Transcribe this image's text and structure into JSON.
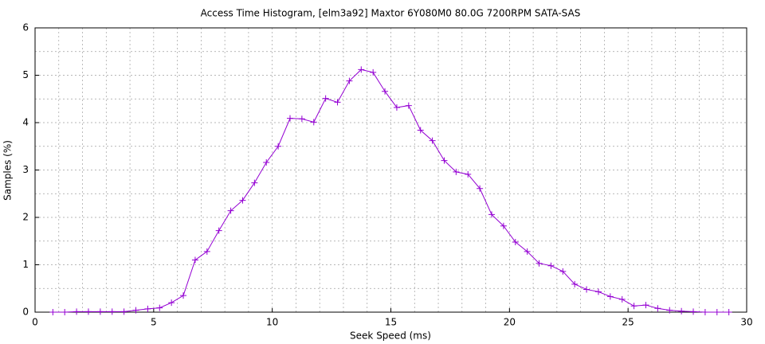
{
  "chart_data": {
    "type": "line",
    "title": "Access Time Histogram, [elm3a92] Maxtor 6Y080M0 80.0G 7200RPM SATA-SAS",
    "x_label": "Seek Speed (ms)",
    "y_label": "Samples (%)",
    "x": [
      0.75,
      1.25,
      1.75,
      2.25,
      2.75,
      3.25,
      3.75,
      4.25,
      4.75,
      5.25,
      5.75,
      6.25,
      6.75,
      7.25,
      7.75,
      8.25,
      8.75,
      9.25,
      9.75,
      10.25,
      10.75,
      11.25,
      11.75,
      12.25,
      12.75,
      13.25,
      13.75,
      14.25,
      14.75,
      15.25,
      15.75,
      16.25,
      16.75,
      17.25,
      17.75,
      18.25,
      18.75,
      19.25,
      19.75,
      20.25,
      20.75,
      21.25,
      21.75,
      22.25,
      22.75,
      23.25,
      23.75,
      24.25,
      24.75,
      25.25,
      25.75,
      26.25,
      26.75,
      27.25,
      27.75,
      28.25,
      28.75,
      29.25
    ],
    "series": [
      {
        "color": "#9400d3",
        "values": [
          0,
          0,
          0.01,
          0.01,
          0.01,
          0.01,
          0.01,
          0.04,
          0.07,
          0.09,
          0.2,
          0.35,
          1.1,
          1.28,
          1.72,
          2.14,
          2.36,
          2.73,
          3.16,
          3.5,
          4.09,
          4.08,
          4.01,
          4.51,
          4.43,
          4.88,
          5.12,
          5.06,
          4.66,
          4.32,
          4.36,
          3.84,
          3.62,
          3.2,
          2.96,
          2.91,
          2.61,
          2.06,
          1.82,
          1.48,
          1.28,
          1.03,
          0.98,
          0.86,
          0.59,
          0.48,
          0.43,
          0.33,
          0.27,
          0.13,
          0.15,
          0.08,
          0.04,
          0.02,
          0.01,
          0,
          0,
          0
        ]
      }
    ],
    "xlim": [
      0,
      30
    ],
    "ylim": [
      0,
      6
    ],
    "xticks": [
      0,
      5,
      10,
      15,
      20,
      25,
      30
    ],
    "yticks": [
      0,
      1,
      2,
      3,
      4,
      5,
      6
    ],
    "xminorticks": [
      1,
      2,
      3,
      4,
      6,
      7,
      8,
      9,
      11,
      12,
      13,
      14,
      16,
      17,
      18,
      19,
      21,
      22,
      23,
      24,
      26,
      27,
      28,
      29
    ],
    "yminorticks": [
      0.5,
      1.5,
      2.5,
      3.5,
      4.5,
      5.5
    ],
    "grid": true
  }
}
